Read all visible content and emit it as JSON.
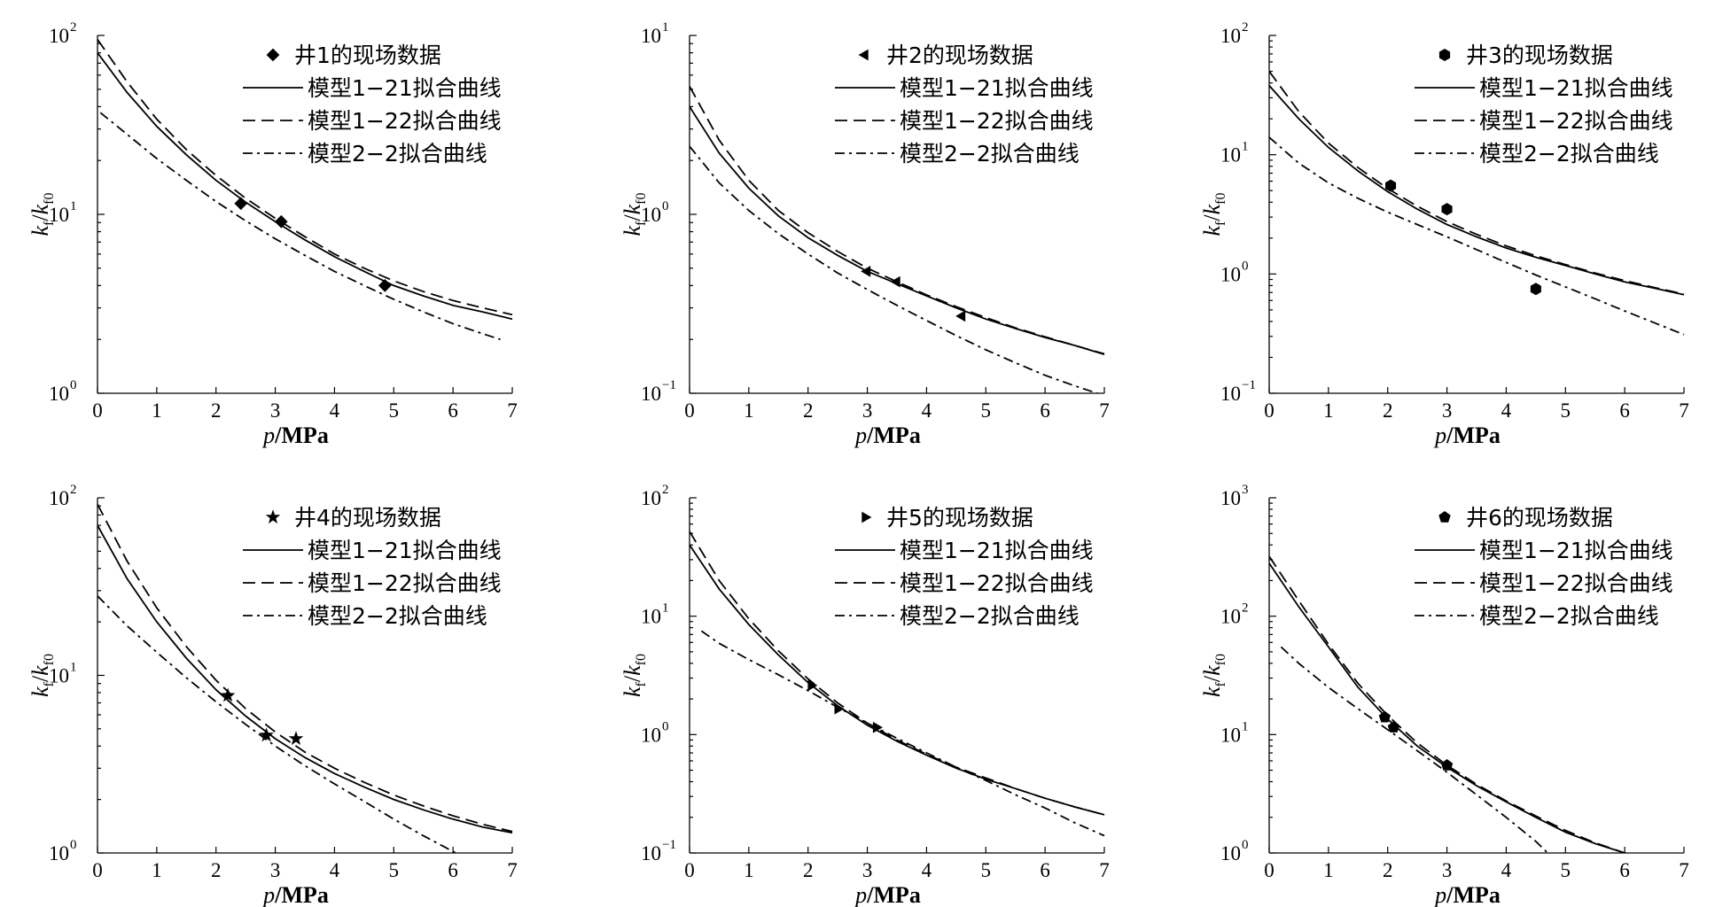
{
  "chart_data": [
    {
      "type": "line",
      "ylog": true,
      "xlim": [
        0,
        7
      ],
      "ylim": [
        1,
        100
      ],
      "x_ticks": [
        0,
        1,
        2,
        3,
        4,
        5,
        6,
        7
      ],
      "y_ticks": [
        {
          "base": "10",
          "exp": "0"
        },
        {
          "base": "10",
          "exp": "1"
        },
        {
          "base": "10",
          "exp": "2"
        }
      ],
      "xlabel": {
        "italic": "p",
        "rest": "/MPa"
      },
      "ylabel": {
        "k": "k",
        "sub_f": "f",
        "slash": "/",
        "k0": "k",
        "sub_f0": "f0"
      },
      "scatter": {
        "name": "井1的现场数据",
        "marker": "diamond",
        "x": [
          2.42,
          3.1,
          4.85
        ],
        "y": [
          11.5,
          9.1,
          4.0
        ]
      },
      "series": [
        {
          "name": "模型1−21拟合曲线",
          "style": "solid",
          "x": [
            0,
            0.5,
            1,
            1.5,
            2,
            2.5,
            3,
            3.5,
            4,
            4.5,
            5,
            5.5,
            6,
            6.5,
            7
          ],
          "y": [
            80,
            48,
            31,
            21.5,
            15.5,
            11.7,
            9.1,
            7.2,
            5.8,
            4.8,
            4.0,
            3.5,
            3.1,
            2.85,
            2.6
          ]
        },
        {
          "name": "模型1−22拟合曲线",
          "style": "dashed",
          "x": [
            0,
            0.5,
            1,
            1.5,
            2,
            2.5,
            3,
            3.5,
            4,
            4.5,
            5,
            5.5,
            6,
            6.5,
            7
          ],
          "y": [
            95,
            55,
            34,
            23,
            16.5,
            12.3,
            9.5,
            7.5,
            6.0,
            5.0,
            4.25,
            3.7,
            3.3,
            3.0,
            2.75
          ]
        },
        {
          "name": "模型2−2拟合曲线",
          "style": "dashdot",
          "x": [
            0.05,
            0.5,
            1,
            1.5,
            2,
            2.5,
            3,
            3.5,
            4,
            4.5,
            5,
            5.5,
            6,
            6.5,
            6.8
          ],
          "y": [
            37,
            28,
            20.5,
            15.5,
            11.8,
            9.2,
            7.3,
            5.9,
            4.8,
            4.0,
            3.35,
            2.85,
            2.45,
            2.15,
            2.0
          ]
        }
      ]
    },
    {
      "type": "line",
      "ylog": true,
      "xlim": [
        0,
        7
      ],
      "ylim": [
        0.1,
        10
      ],
      "x_ticks": [
        0,
        1,
        2,
        3,
        4,
        5,
        6,
        7
      ],
      "y_ticks": [
        {
          "base": "10",
          "exp": "−1"
        },
        {
          "base": "10",
          "exp": "0"
        },
        {
          "base": "10",
          "exp": "1"
        }
      ],
      "xlabel": {
        "italic": "p",
        "rest": "/MPa"
      },
      "ylabel": {
        "k": "k",
        "sub_f": "f",
        "slash": "/",
        "k0": "k",
        "sub_f0": "f0"
      },
      "scatter": {
        "name": "井2的现场数据",
        "marker": "triangle-left",
        "x": [
          3.0,
          3.5,
          4.6
        ],
        "y": [
          0.48,
          0.42,
          0.27
        ]
      },
      "series": [
        {
          "name": "模型1−21拟合曲线",
          "style": "solid",
          "x": [
            0,
            0.5,
            1,
            1.5,
            2,
            2.5,
            3,
            3.5,
            4,
            4.5,
            5,
            5.5,
            6,
            6.5,
            7
          ],
          "y": [
            4.0,
            2.2,
            1.4,
            0.98,
            0.74,
            0.59,
            0.48,
            0.41,
            0.35,
            0.3,
            0.26,
            0.23,
            0.205,
            0.185,
            0.165
          ]
        },
        {
          "name": "模型1−22拟合曲线",
          "style": "dashed",
          "x": [
            0,
            0.5,
            1,
            1.5,
            2,
            2.5,
            3,
            3.5,
            4,
            4.5,
            5,
            5.5,
            6,
            6.5,
            7
          ],
          "y": [
            5.2,
            2.6,
            1.55,
            1.05,
            0.79,
            0.62,
            0.5,
            0.42,
            0.355,
            0.305,
            0.265,
            0.232,
            0.207,
            0.185,
            0.166
          ]
        },
        {
          "name": "模型2−2拟合曲线",
          "style": "dashdot",
          "x": [
            0,
            0.5,
            1,
            1.5,
            2,
            2.5,
            3,
            3.5,
            4,
            4.5,
            5,
            5.5,
            6,
            6.5,
            7
          ],
          "y": [
            2.4,
            1.5,
            1.05,
            0.78,
            0.6,
            0.47,
            0.38,
            0.31,
            0.255,
            0.21,
            0.175,
            0.148,
            0.126,
            0.11,
            0.097
          ]
        }
      ]
    },
    {
      "type": "line",
      "ylog": true,
      "xlim": [
        0,
        7
      ],
      "ylim": [
        0.1,
        100
      ],
      "x_ticks": [
        0,
        1,
        2,
        3,
        4,
        5,
        6,
        7
      ],
      "y_ticks": [
        {
          "base": "10",
          "exp": "−1"
        },
        {
          "base": "10",
          "exp": "0"
        },
        {
          "base": "10",
          "exp": "1"
        },
        {
          "base": "10",
          "exp": "2"
        }
      ],
      "xlabel": {
        "italic": "p",
        "rest": "/MPa"
      },
      "ylabel": {
        "k": "k",
        "sub_f": "f",
        "slash": "/",
        "k0": "k",
        "sub_f0": "f0"
      },
      "scatter": {
        "name": "井3的现场数据",
        "marker": "hexagon",
        "x": [
          2.05,
          3.0,
          4.5
        ],
        "y": [
          5.5,
          3.5,
          0.75
        ]
      },
      "series": [
        {
          "name": "模型1−21拟合曲线",
          "style": "solid",
          "x": [
            0,
            0.5,
            1,
            1.5,
            2,
            2.5,
            3,
            3.5,
            4,
            4.5,
            5,
            5.5,
            6,
            6.5,
            7
          ],
          "y": [
            38,
            20,
            11.5,
            7.3,
            4.9,
            3.5,
            2.6,
            2.05,
            1.65,
            1.38,
            1.18,
            1.0,
            0.86,
            0.76,
            0.67
          ]
        },
        {
          "name": "模型1−22拟合曲线",
          "style": "dashed",
          "x": [
            0,
            0.5,
            1,
            1.5,
            2,
            2.5,
            3,
            3.5,
            4,
            4.5,
            5,
            5.5,
            6,
            6.5,
            7
          ],
          "y": [
            50,
            23,
            12.5,
            7.8,
            5.2,
            3.7,
            2.75,
            2.15,
            1.72,
            1.42,
            1.2,
            1.02,
            0.88,
            0.77,
            0.68
          ]
        },
        {
          "name": "模型2−2拟合曲线",
          "style": "dashdot",
          "x": [
            0,
            0.5,
            1,
            1.5,
            2,
            2.5,
            3,
            3.5,
            4,
            4.5,
            5,
            5.5,
            6,
            6.5,
            7
          ],
          "y": [
            14,
            8.5,
            5.8,
            4.3,
            3.3,
            2.6,
            2.05,
            1.6,
            1.25,
            0.98,
            0.78,
            0.62,
            0.49,
            0.39,
            0.31
          ]
        }
      ]
    },
    {
      "type": "line",
      "ylog": true,
      "xlim": [
        0,
        7
      ],
      "ylim": [
        1,
        100
      ],
      "x_ticks": [
        0,
        1,
        2,
        3,
        4,
        5,
        6,
        7
      ],
      "y_ticks": [
        {
          "base": "10",
          "exp": "0"
        },
        {
          "base": "10",
          "exp": "1"
        },
        {
          "base": "10",
          "exp": "2"
        }
      ],
      "xlabel": {
        "italic": "p",
        "rest": "/MPa"
      },
      "ylabel": {
        "k": "k",
        "sub_f": "f",
        "slash": "/",
        "k0": "k",
        "sub_f0": "f0"
      },
      "scatter": {
        "name": "井4的现场数据",
        "marker": "star",
        "x": [
          2.2,
          2.85,
          3.35
        ],
        "y": [
          7.7,
          4.6,
          4.4
        ]
      },
      "series": [
        {
          "name": "模型1−21拟合曲线",
          "style": "solid",
          "x": [
            0,
            0.5,
            1,
            1.5,
            2,
            2.5,
            3,
            3.5,
            4,
            4.5,
            5,
            5.5,
            6,
            6.5,
            7
          ],
          "y": [
            70,
            35,
            20,
            12.5,
            8.3,
            5.9,
            4.4,
            3.45,
            2.8,
            2.35,
            2.0,
            1.75,
            1.55,
            1.4,
            1.3
          ]
        },
        {
          "name": "模型1−22拟合曲线",
          "style": "dashed",
          "x": [
            0,
            0.5,
            1,
            1.5,
            2,
            2.5,
            3,
            3.5,
            4,
            4.5,
            5,
            5.5,
            6,
            6.5,
            7
          ],
          "y": [
            92,
            44,
            24,
            14.5,
            9.4,
            6.5,
            4.8,
            3.7,
            3.0,
            2.5,
            2.12,
            1.84,
            1.62,
            1.45,
            1.32
          ]
        },
        {
          "name": "模型2−2拟合曲线",
          "style": "dashdot",
          "x": [
            0,
            0.5,
            1,
            1.5,
            2,
            2.5,
            3,
            3.5,
            4,
            4.5,
            5,
            5.5,
            6,
            6.5
          ],
          "y": [
            28,
            19,
            13.5,
            9.7,
            7.1,
            5.3,
            4.0,
            3.1,
            2.45,
            1.95,
            1.55,
            1.25,
            1.02,
            0.84
          ]
        }
      ]
    },
    {
      "type": "line",
      "ylog": true,
      "xlim": [
        0,
        7
      ],
      "ylim": [
        0.1,
        100
      ],
      "x_ticks": [
        0,
        1,
        2,
        3,
        4,
        5,
        6,
        7
      ],
      "y_ticks": [
        {
          "base": "10",
          "exp": "−1"
        },
        {
          "base": "10",
          "exp": "0"
        },
        {
          "base": "10",
          "exp": "1"
        },
        {
          "base": "10",
          "exp": "2"
        }
      ],
      "xlabel": {
        "italic": "p",
        "rest": "/MPa"
      },
      "ylabel": {
        "k": "k",
        "sub_f": "f",
        "slash": "/",
        "k0": "k",
        "sub_f0": "f0"
      },
      "scatter": {
        "name": "井5的现场数据",
        "marker": "triangle-right",
        "x": [
          2.05,
          2.5,
          3.15
        ],
        "y": [
          2.6,
          1.65,
          1.15
        ]
      },
      "series": [
        {
          "name": "模型1−21拟合曲线",
          "style": "solid",
          "x": [
            0,
            0.5,
            1,
            1.5,
            2,
            2.5,
            3,
            3.5,
            4,
            4.5,
            5,
            5.5,
            6,
            6.5,
            7
          ],
          "y": [
            40,
            17,
            8.5,
            4.7,
            2.75,
            1.75,
            1.2,
            0.88,
            0.67,
            0.52,
            0.42,
            0.35,
            0.29,
            0.245,
            0.21
          ]
        },
        {
          "name": "模型1−22拟合曲线",
          "style": "dashed",
          "x": [
            0,
            0.5,
            1,
            1.5,
            2,
            2.5,
            3,
            3.5,
            4,
            4.5,
            5,
            5.5,
            6,
            6.5,
            7
          ],
          "y": [
            52,
            20,
            9.5,
            5.1,
            2.95,
            1.85,
            1.25,
            0.9,
            0.68,
            0.53,
            0.43,
            0.35,
            0.29,
            0.245,
            0.21
          ]
        },
        {
          "name": "模型2−2拟合曲线",
          "style": "dashdot",
          "x": [
            0.2,
            0.5,
            1,
            1.5,
            2,
            2.5,
            3,
            3.5,
            4,
            4.5,
            5,
            5.5,
            6,
            6.5,
            7
          ],
          "y": [
            7.5,
            5.9,
            4.3,
            3.2,
            2.35,
            1.7,
            1.25,
            0.93,
            0.7,
            0.53,
            0.41,
            0.31,
            0.24,
            0.18,
            0.14
          ]
        }
      ]
    },
    {
      "type": "line",
      "ylog": true,
      "xlim": [
        0,
        7
      ],
      "ylim": [
        1,
        1000
      ],
      "x_ticks": [
        0,
        1,
        2,
        3,
        4,
        5,
        6,
        7
      ],
      "y_ticks": [
        {
          "base": "10",
          "exp": "0"
        },
        {
          "base": "10",
          "exp": "1"
        },
        {
          "base": "10",
          "exp": "2"
        },
        {
          "base": "10",
          "exp": "3"
        }
      ],
      "xlabel": {
        "italic": "p",
        "rest": "/MPa"
      },
      "ylabel": {
        "k": "k",
        "sub_f": "f",
        "slash": "/",
        "k0": "k",
        "sub_f0": "f0"
      },
      "scatter": {
        "name": "井6的现场数据",
        "marker": "pentagon",
        "x": [
          1.95,
          2.1,
          3.0
        ],
        "y": [
          14,
          11.5,
          5.5
        ]
      },
      "series": [
        {
          "name": "模型1−21拟合曲线",
          "style": "solid",
          "x": [
            0,
            0.5,
            1,
            1.5,
            2,
            2.5,
            3,
            3.5,
            4,
            4.5,
            5,
            5.5,
            6,
            6.2
          ],
          "y": [
            280,
            120,
            55,
            25,
            13.5,
            8.0,
            5.3,
            3.7,
            2.7,
            2.0,
            1.5,
            1.2,
            1.0,
            0.95
          ]
        },
        {
          "name": "模型1−22拟合曲线",
          "style": "dashed",
          "x": [
            0,
            0.5,
            1,
            1.5,
            2,
            2.5,
            3,
            3.5,
            4,
            4.5,
            5,
            5.5,
            6,
            6.2
          ],
          "y": [
            320,
            135,
            58,
            27,
            14.5,
            8.5,
            5.5,
            3.8,
            2.75,
            2.05,
            1.55,
            1.22,
            1.0,
            0.95
          ]
        },
        {
          "name": "模型2−2拟合曲线",
          "style": "dashdot",
          "x": [
            0.2,
            0.5,
            1,
            1.5,
            2,
            2.5,
            3,
            3.5,
            4,
            4.5,
            4.7
          ],
          "y": [
            55,
            40,
            25,
            16.5,
            11.0,
            7.3,
            4.8,
            3.1,
            2.0,
            1.25,
            1.0
          ]
        }
      ]
    }
  ]
}
